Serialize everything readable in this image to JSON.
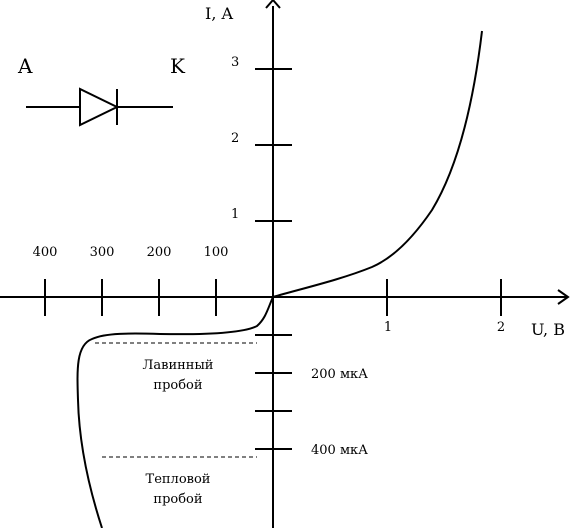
{
  "diode": {
    "anode_label": "A",
    "cathode_label": "K"
  },
  "axes": {
    "y_title": "I, A",
    "x_title": "U, B",
    "y_ticks": [
      "1",
      "2",
      "3"
    ],
    "x_ticks_pos": [
      "1",
      "2"
    ],
    "x_ticks_neg": [
      "400",
      "300",
      "200",
      "100"
    ],
    "neg_y_ticks": [
      "200 мкА",
      "400 мкА"
    ]
  },
  "regions": {
    "avalanche": [
      "Лавинный",
      "пробой"
    ],
    "thermal": [
      "Тепловой",
      "пробой"
    ]
  }
}
